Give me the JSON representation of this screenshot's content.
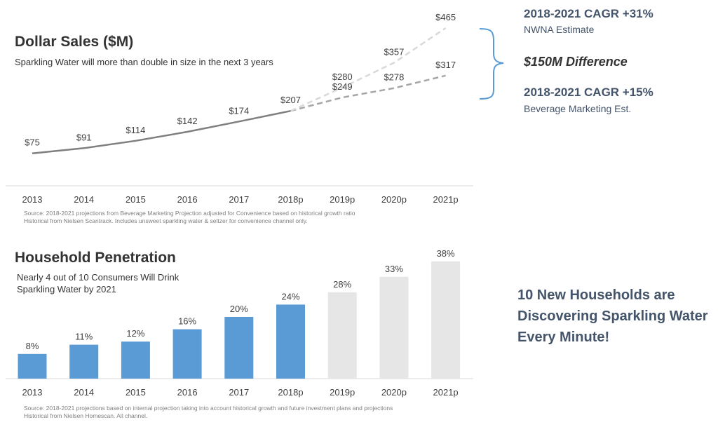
{
  "chart_data": [
    {
      "type": "line",
      "title": "Dollar Sales ($M)",
      "subtitle": "Sparkling Water will more than double in size in the next 3 years",
      "categories": [
        "2013",
        "2014",
        "2015",
        "2016",
        "2017",
        "2018p",
        "2019p",
        "2020p",
        "2021p"
      ],
      "series": [
        {
          "values": [
            75,
            91,
            114,
            142,
            174,
            207,
            null,
            null,
            null
          ],
          "labels": [
            "$75",
            "$91",
            "$114",
            "$142",
            "$174",
            "$207",
            "",
            "",
            ""
          ],
          "color": "#7f7f7f",
          "style": "solid"
        },
        {
          "values": [
            null,
            null,
            null,
            null,
            null,
            207,
            280,
            357,
            465
          ],
          "labels": [
            "",
            "",
            "",
            "",
            "",
            "",
            "$280",
            "$357",
            "$465"
          ],
          "color": "#d9d9d9",
          "style": "dashed"
        },
        {
          "values": [
            null,
            null,
            null,
            null,
            null,
            207,
            249,
            278,
            317
          ],
          "labels": [
            "",
            "",
            "",
            "",
            "",
            "",
            "$249",
            "$278",
            "$317"
          ],
          "color": "#a6a6a6",
          "style": "dashed"
        }
      ],
      "source": [
        "Source: 2018-2021 projections from Beverage Marketing Projection adjusted for Convenience based on historical growth ratio",
        "Historical from Nielsen Scantrack.  Includes unsweet sparkling water & seltzer for convenience channel only."
      ]
    },
    {
      "type": "bar",
      "title": "Household Penetration",
      "subtitle": [
        "Nearly 4 out of 10 Consumers Will Drink",
        "Sparkling Water by 2021"
      ],
      "categories": [
        "2013",
        "2014",
        "2015",
        "2016",
        "2017",
        "2018p",
        "2019p",
        "2020p",
        "2021p"
      ],
      "values": [
        8,
        11,
        12,
        16,
        20,
        24,
        28,
        33,
        38
      ],
      "labels": [
        "8%",
        "11%",
        "12%",
        "16%",
        "20%",
        "24%",
        "28%",
        "33%",
        "38%"
      ],
      "colors": [
        "#5b9bd5",
        "#5b9bd5",
        "#5b9bd5",
        "#5b9bd5",
        "#5b9bd5",
        "#5b9bd5",
        "#e7e6e6",
        "#e7e6e6",
        "#e7e6e6"
      ],
      "source": [
        "Source: 2018-2021 projections based on internal projection taking into account historical growth and future investment plans and projections",
        "Historical from Nielsen Homescan.  All channel."
      ]
    }
  ],
  "annotations": {
    "nwna_cagr": "2018-2021  CAGR +31%",
    "nwna_label": "NWNA Estimate",
    "difference": "$150M Difference",
    "bmc_cagr": "2018-2021  CAGR +15%",
    "bmc_label": "Beverage Marketing Est.",
    "callout": "10 New Households are Discovering Sparkling Water Every Minute!",
    "brace_color": "#5b9bd5"
  }
}
